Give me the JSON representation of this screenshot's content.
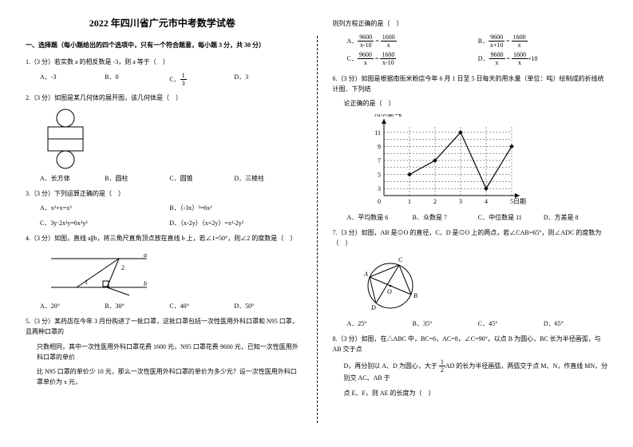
{
  "title": "2022 年四川省广元市中考数学试卷",
  "section1": "一、选择题（每小题给出的四个选项中，只有一个符合题意，每小题 3 分，共 30 分）",
  "q1": {
    "stem": "1.（3 分）若实数 a 的相反数是 -3，则 a 等于（　）",
    "A": "A．-3",
    "B": "B．0",
    "C_pre": "C．",
    "C_num": "1",
    "C_den": "3",
    "D": "D．3"
  },
  "q2": {
    "stem": "2.（3 分）如图是某几何体的展开图，该几何体是（　）",
    "A": "A．长方体",
    "B": "B．圆柱",
    "C": "C．圆锥",
    "D": "D．三棱柱",
    "fig": {
      "rect_fill": "#ffffff",
      "stroke": "#000000"
    }
  },
  "q3": {
    "stem": "3.（3 分）下列运算正确的是（　）",
    "A": "A．x²+x=x³",
    "B": "B．（-3x）²=6x²",
    "C": "C．3y·2x²y=6x²y²",
    "D": "D．（x-2y）（x+2y）=x²-2y²"
  },
  "q4": {
    "stem": "4.（3 分）如图，直线 a∥b，将三角尺直角顶点放在直线 b 上，若∠1=50°，则∠2 的度数是（　）",
    "A": "A．20°",
    "B": "B．30°",
    "C": "C．40°",
    "D": "D．50°",
    "fig": {
      "stroke": "#000000"
    }
  },
  "q5": {
    "l1": "5.（3 分）某药店在今年 3 月份购进了一批口罩，这批口罩包括一次性医用外科口罩和 N95 口罩，且两种口罩的",
    "l2": "只数相同，其中一次性医用外科口罩花费 1600 元，N95 口罩花费 9600 元，已知一次性医用外科口罩的单价",
    "l3": "比 N95 口罩的单价少 10 元，那么一次性医用外科口罩的单价为多少元？设一次性医用外科口罩单价为 x 元，"
  },
  "q5r": {
    "head": "则列方程正确的是（　）",
    "A": {
      "l": "A．",
      "n1": "9600",
      "d1": "x-10",
      "n2": "1600",
      "d2": "x"
    },
    "B": {
      "l": "B．",
      "n1": "9600",
      "d1": "x+10",
      "n2": "1600",
      "d2": "x"
    },
    "C": {
      "l": "C．",
      "n1": "9600",
      "d1": "x",
      "n2": "1600",
      "d2": "x-10"
    },
    "D": {
      "l": "D．",
      "n1": "9600",
      "d1": "x",
      "n2": "1600",
      "d2": "x",
      "tail": "+10"
    }
  },
  "q6": {
    "l1": "6.（3 分）如图是根据南街米粉店今年 6 月 1 日至 5 日每天的用水量（单位：吨）绘制成的折线统计图．下列结",
    "l2": "论正确的是（　）",
    "ylabel": "用水量/吨",
    "xlabel": "日期",
    "x": [
      1,
      2,
      3,
      4,
      5
    ],
    "y": [
      5,
      7,
      11,
      3,
      9
    ],
    "yticks": [
      3,
      5,
      7,
      9,
      11
    ],
    "grid": "#e5e5e5",
    "axis": "#000000",
    "line": "#000000",
    "marker": "#000000",
    "A": "A．平均数是 6",
    "B": "B．众数是 7",
    "C": "C．中位数是 11",
    "D": "D．方差是 8"
  },
  "q7": {
    "stem": "7.（3 分）如图，AB 是⊙O 的直径，C、D 是⊙O 上的两点，若∠CAB=65°，则∠ADC 的度数为（　）",
    "A": "A．25°",
    "B": "B．35°",
    "C": "C．45°",
    "D": "D．65°",
    "fig": {
      "stroke": "#000000"
    }
  },
  "q8": {
    "l1": "8.（3 分）如图，在△ABC 中，BC=6，AC=8，∠C=90°，以点 B 为圆心，BC 长为半径画弧，与 AB 交于点",
    "l2_a": "D，再分别以 A、D 为圆心，大于 ",
    "l2_num": "1",
    "l2_den": "2",
    "l2_b": "AD 的长为半径画弧，两弧交于点 M、N，作直线 MN，分别交 AC、AB 于",
    "l3": "点 E、F，则 AE 的长度为（　）"
  }
}
